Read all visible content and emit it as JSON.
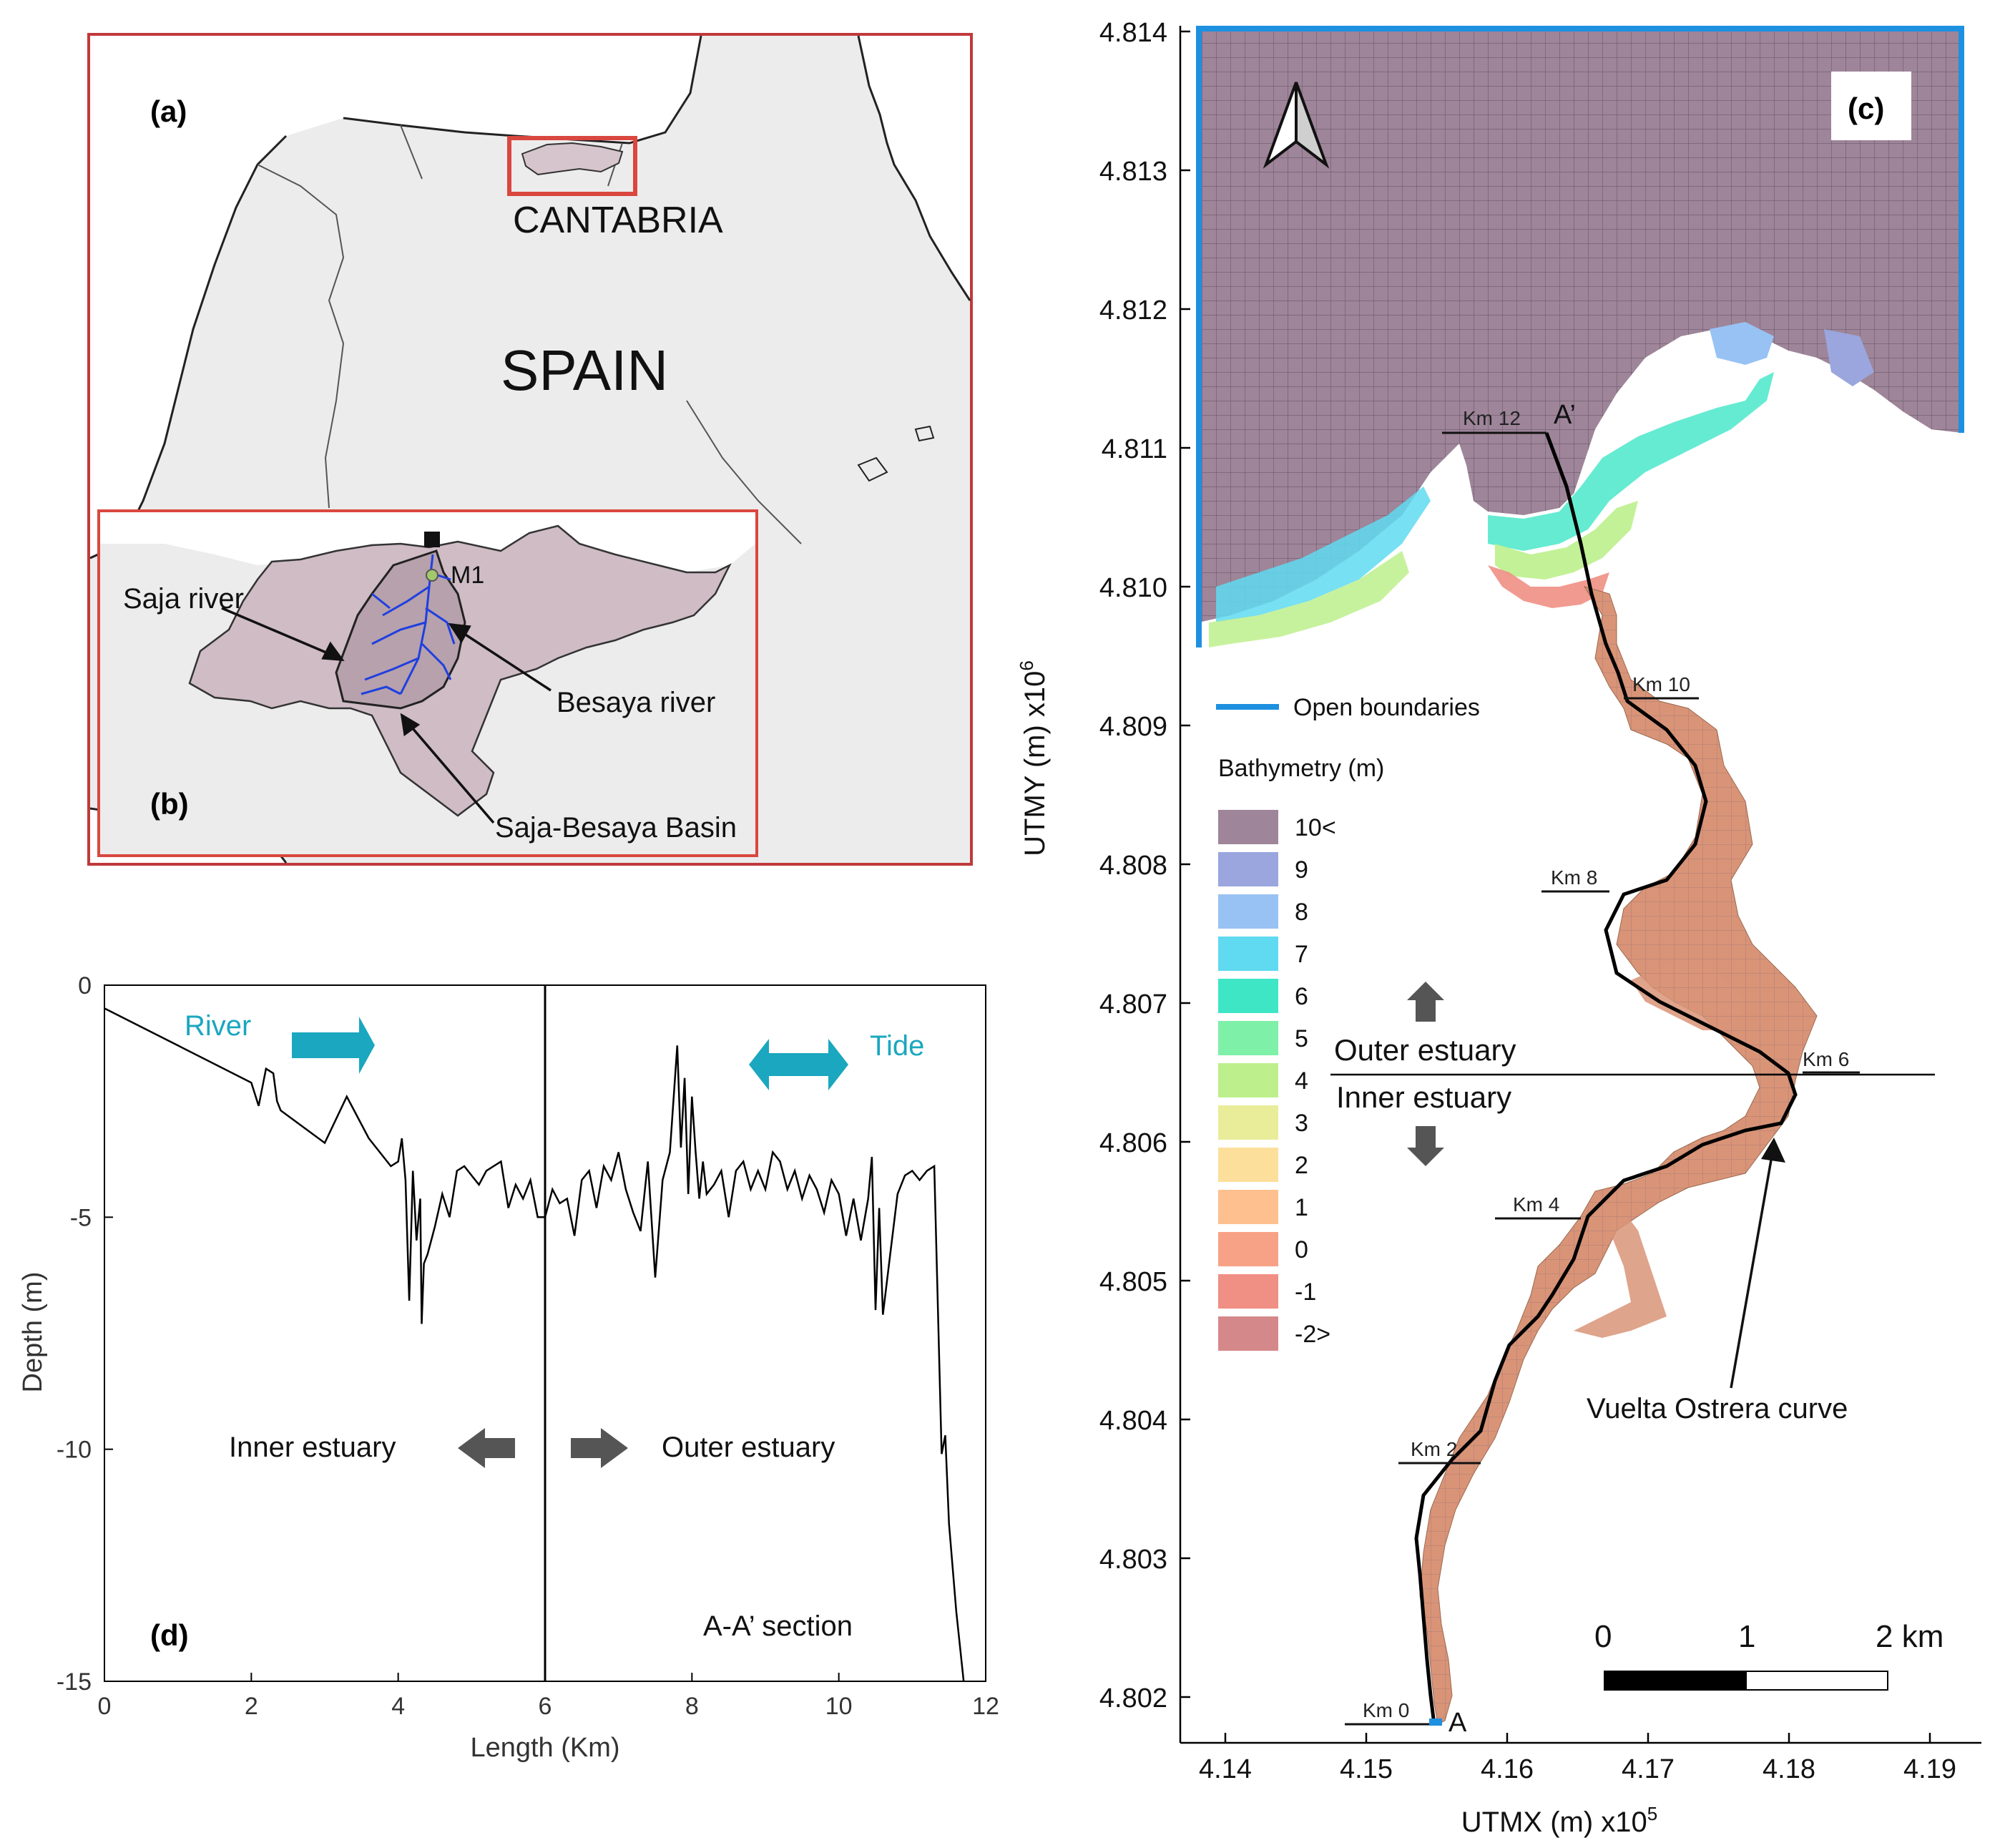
{
  "panel_a": {
    "label": "(a)",
    "region_label": "CANTABRIA",
    "country_label": "SPAIN",
    "frame_color": "#c0393b",
    "land_color": "#ececec",
    "highlight_color": "#d6c5cc"
  },
  "panel_b": {
    "label": "(b)",
    "station": "M1",
    "callouts": [
      "Saja river",
      "Besaya river",
      "Saja-Besaya Basin"
    ],
    "basin_color": "#cfbcc4",
    "river_color": "#1f3fe0"
  },
  "panel_c": {
    "label": "(c)",
    "y_axis_label": "UTMY (m) x10",
    "y_axis_exp": "6",
    "x_axis_label": "UTMX (m) x10",
    "x_axis_exp": "5",
    "y_ticks": [
      "4.814",
      "4.813",
      "4.812",
      "4.811",
      "4.810",
      "4.809",
      "4.808",
      "4.807",
      "4.806",
      "4.805",
      "4.804",
      "4.803",
      "4.802"
    ],
    "x_ticks": [
      "4.14",
      "4.15",
      "4.16",
      "4.17",
      "4.18",
      "4.19"
    ],
    "km_markers": [
      "Km 0",
      "Km 2",
      "Km 4",
      "Km 6",
      "Km 8",
      "Km 10",
      "Km 12"
    ],
    "point_a": "A",
    "point_a_prime": "A’",
    "open_boundaries_label": "Open boundaries",
    "open_boundary_color": "#1e90e0",
    "bathymetry_title": "Bathymetry (m)",
    "bathymetry_legend": [
      {
        "label": "10<",
        "color": "#9e8599"
      },
      {
        "label": "9",
        "color": "#9aa6dd"
      },
      {
        "label": "8",
        "color": "#98c2f4"
      },
      {
        "label": "7",
        "color": "#5fdaf0"
      },
      {
        "label": "6",
        "color": "#3fe6c6"
      },
      {
        "label": "5",
        "color": "#7ff0a8"
      },
      {
        "label": "4",
        "color": "#bdf08c"
      },
      {
        "label": "3",
        "color": "#e9ed9a"
      },
      {
        "label": "2",
        "color": "#fddf9c"
      },
      {
        "label": "1",
        "color": "#fdc08e"
      },
      {
        "label": "0",
        "color": "#f7a287"
      },
      {
        "label": "-1",
        "color": "#f08f84"
      },
      {
        "label": "-2>",
        "color": "#d58889"
      }
    ],
    "outer_estuary": "Outer estuary",
    "inner_estuary": "Inner estuary",
    "curve_label": "Vuelta Ostrera curve",
    "scale_labels": [
      "0",
      "1",
      "2 km"
    ]
  },
  "chart_data": {
    "type": "line",
    "panel_label": "(d)",
    "xlabel": "Length (Km)",
    "ylabel": "Depth (m)",
    "xlim": [
      0,
      12
    ],
    "ylim": [
      -15,
      0
    ],
    "x_ticks": [
      0,
      2,
      4,
      6,
      8,
      10,
      12
    ],
    "y_ticks": [
      0,
      -5,
      -10,
      -15
    ],
    "grid": false,
    "vertical_line_x": 6,
    "annotations": {
      "river": "River",
      "tide": "Tide",
      "inner": "Inner estuary",
      "outer": "Outer estuary",
      "section": "A-A’ section"
    },
    "annotation_color": "#1aa7bf",
    "series": [
      {
        "x": [
          0,
          1.0,
          2.0,
          2.1,
          2.2,
          2.3,
          2.35,
          2.4,
          3.0,
          3.3,
          3.6,
          3.9,
          4.0,
          4.05,
          4.1,
          4.15,
          4.2,
          4.25,
          4.3,
          4.32,
          4.35,
          4.4,
          4.5,
          4.6,
          4.7,
          4.8,
          4.9,
          5.0,
          5.1,
          5.2,
          5.4,
          5.5,
          5.6,
          5.7,
          5.8,
          5.9,
          6.0,
          6.1,
          6.2,
          6.3,
          6.4,
          6.5,
          6.6,
          6.7,
          6.8,
          6.9,
          7.0,
          7.1,
          7.2,
          7.3,
          7.4,
          7.5,
          7.6,
          7.7,
          7.8,
          7.85,
          7.9,
          7.95,
          8.0,
          8.05,
          8.1,
          8.15,
          8.2,
          8.3,
          8.4,
          8.5,
          8.6,
          8.7,
          8.8,
          8.9,
          9.0,
          9.1,
          9.2,
          9.3,
          9.4,
          9.5,
          9.6,
          9.7,
          9.8,
          9.9,
          10.0,
          10.1,
          10.2,
          10.3,
          10.4,
          10.45,
          10.5,
          10.55,
          10.6,
          10.7,
          10.8,
          10.9,
          11.0,
          11.1,
          11.2,
          11.3,
          11.4,
          11.45,
          11.5,
          11.6,
          11.7
        ],
        "y": [
          -0.5,
          -1.3,
          -2.1,
          -2.6,
          -1.8,
          -1.9,
          -2.5,
          -2.7,
          -3.4,
          -2.4,
          -3.3,
          -3.9,
          -3.8,
          -3.3,
          -4.2,
          -6.8,
          -4.0,
          -5.5,
          -4.6,
          -7.3,
          -6.0,
          -5.8,
          -5.2,
          -4.5,
          -5.0,
          -4.0,
          -3.9,
          -4.1,
          -4.3,
          -4.0,
          -3.8,
          -4.8,
          -4.3,
          -4.6,
          -4.2,
          -5.0,
          -5.0,
          -4.4,
          -4.7,
          -4.6,
          -5.4,
          -4.2,
          -4.0,
          -4.8,
          -3.9,
          -4.2,
          -3.6,
          -4.4,
          -4.9,
          -5.3,
          -3.8,
          -6.3,
          -4.2,
          -3.6,
          -1.3,
          -3.5,
          -2.0,
          -4.5,
          -2.4,
          -3.6,
          -4.6,
          -3.8,
          -4.5,
          -4.3,
          -4.0,
          -5.0,
          -4.0,
          -3.8,
          -4.4,
          -4.0,
          -4.4,
          -3.6,
          -3.8,
          -4.4,
          -4.0,
          -4.6,
          -4.1,
          -4.4,
          -4.9,
          -4.2,
          -4.5,
          -5.4,
          -4.6,
          -5.5,
          -4.6,
          -3.7,
          -7.0,
          -4.8,
          -7.1,
          -5.8,
          -4.5,
          -4.1,
          -4.0,
          -4.2,
          -4.0,
          -3.9,
          -10.1,
          -9.7,
          -11.6,
          -13.5,
          -15.0
        ]
      }
    ]
  }
}
